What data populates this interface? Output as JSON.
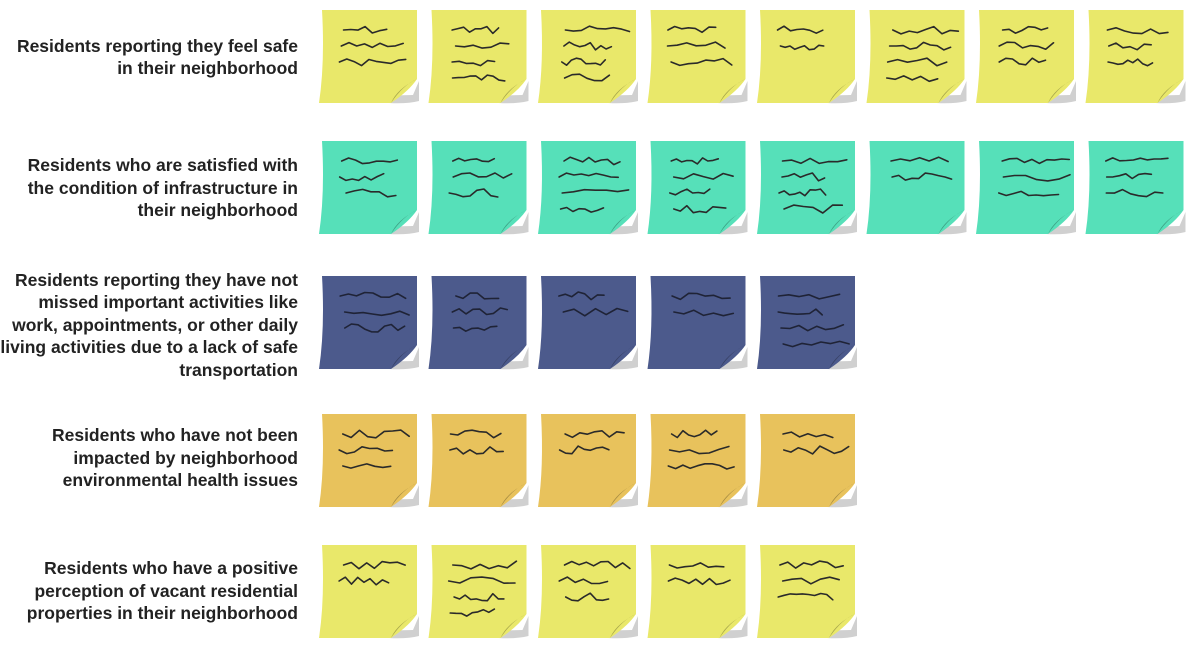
{
  "chart_data": {
    "type": "pictograph",
    "title": "",
    "xlabel": "",
    "ylabel": "",
    "categories": [
      "Residents reporting they feel safe in their neighborhood",
      "Residents who are satisfied with the condition of infrastructure in their neighborhood",
      "Residents reporting they have not missed important activities like work, appointments, or other daily living activities due to a lack of safe transportation",
      "Residents who have not been impacted by neighborhood environmental health issues",
      "Residents who have a positive perception of vacant residential properties in their neighborhood"
    ],
    "values": [
      8,
      8,
      5,
      5,
      5
    ],
    "icon": "sticky-note-icon",
    "colors": [
      "#e9e86a",
      "#56e0b9",
      "#4c5a8c",
      "#e8c25c",
      "#e9e86a"
    ]
  }
}
